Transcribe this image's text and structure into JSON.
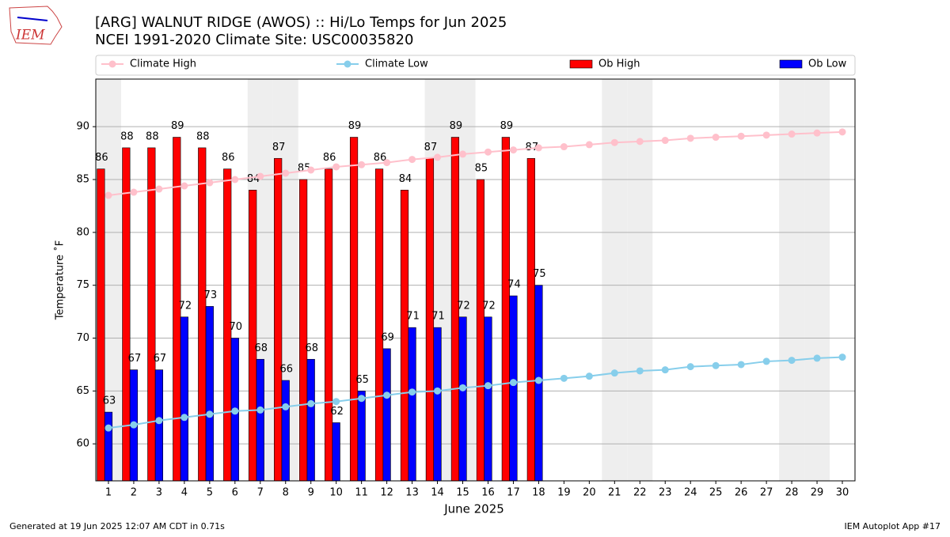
{
  "chart_data": {
    "type": "bar",
    "logo_text": "IEM",
    "title": "[ARG] WALNUT RIDGE (AWOS) :: Hi/Lo Temps for Jun 2025",
    "subtitle": "NCEI 1991-2020 Climate Site: USC00035820",
    "xlabel": "June 2025",
    "ylabel": "Temperature ˚F",
    "footer_left": "Generated at 19 Jun 2025 12:07 AM CDT in 0.71s",
    "footer_right": "IEM Autoplot App #17",
    "x": [
      1,
      2,
      3,
      4,
      5,
      6,
      7,
      8,
      9,
      10,
      11,
      12,
      13,
      14,
      15,
      16,
      17,
      18,
      19,
      20,
      21,
      22,
      23,
      24,
      25,
      26,
      27,
      28,
      29,
      30
    ],
    "xlim": [
      0.5,
      30.5
    ],
    "xticks": [
      1,
      2,
      3,
      4,
      5,
      6,
      7,
      8,
      9,
      10,
      11,
      12,
      13,
      14,
      15,
      16,
      17,
      18,
      19,
      20,
      21,
      22,
      23,
      24,
      25,
      26,
      27,
      28,
      29,
      30
    ],
    "ylim": [
      56.5,
      94.5
    ],
    "yticks": [
      60,
      65,
      70,
      75,
      80,
      85,
      90
    ],
    "grid": true,
    "shaded_days": [
      1,
      7,
      8,
      14,
      15,
      21,
      22,
      28,
      29
    ],
    "series": [
      {
        "name": "Climate High",
        "type": "line",
        "color": "#ffc0cb",
        "values": [
          83.5,
          83.8,
          84.1,
          84.4,
          84.7,
          85.0,
          85.3,
          85.6,
          85.9,
          86.2,
          86.4,
          86.6,
          86.9,
          87.1,
          87.4,
          87.6,
          87.8,
          88.0,
          88.1,
          88.3,
          88.5,
          88.6,
          88.7,
          88.9,
          89.0,
          89.1,
          89.2,
          89.3,
          89.4,
          89.5
        ]
      },
      {
        "name": "Climate Low",
        "type": "line",
        "color": "#87ceeb",
        "values": [
          61.5,
          61.8,
          62.2,
          62.5,
          62.8,
          63.1,
          63.2,
          63.5,
          63.8,
          64.0,
          64.3,
          64.6,
          64.9,
          65.0,
          65.3,
          65.5,
          65.8,
          66.0,
          66.2,
          66.4,
          66.7,
          66.9,
          67.0,
          67.3,
          67.4,
          67.5,
          67.8,
          67.9,
          68.1,
          68.2
        ]
      },
      {
        "name": "Ob High",
        "type": "bar",
        "color": "#ff0000",
        "values": [
          86,
          88,
          88,
          89,
          88,
          86,
          84,
          87,
          85,
          86,
          89,
          86,
          84,
          87,
          89,
          85,
          89,
          87,
          null,
          null,
          null,
          null,
          null,
          null,
          null,
          null,
          null,
          null,
          null,
          null
        ]
      },
      {
        "name": "Ob Low",
        "type": "bar",
        "color": "#0000ff",
        "values": [
          63,
          67,
          67,
          72,
          73,
          70,
          68,
          66,
          68,
          62,
          65,
          69,
          71,
          71,
          72,
          72,
          74,
          75,
          null,
          null,
          null,
          null,
          null,
          null,
          null,
          null,
          null,
          null,
          null,
          null
        ]
      }
    ]
  }
}
